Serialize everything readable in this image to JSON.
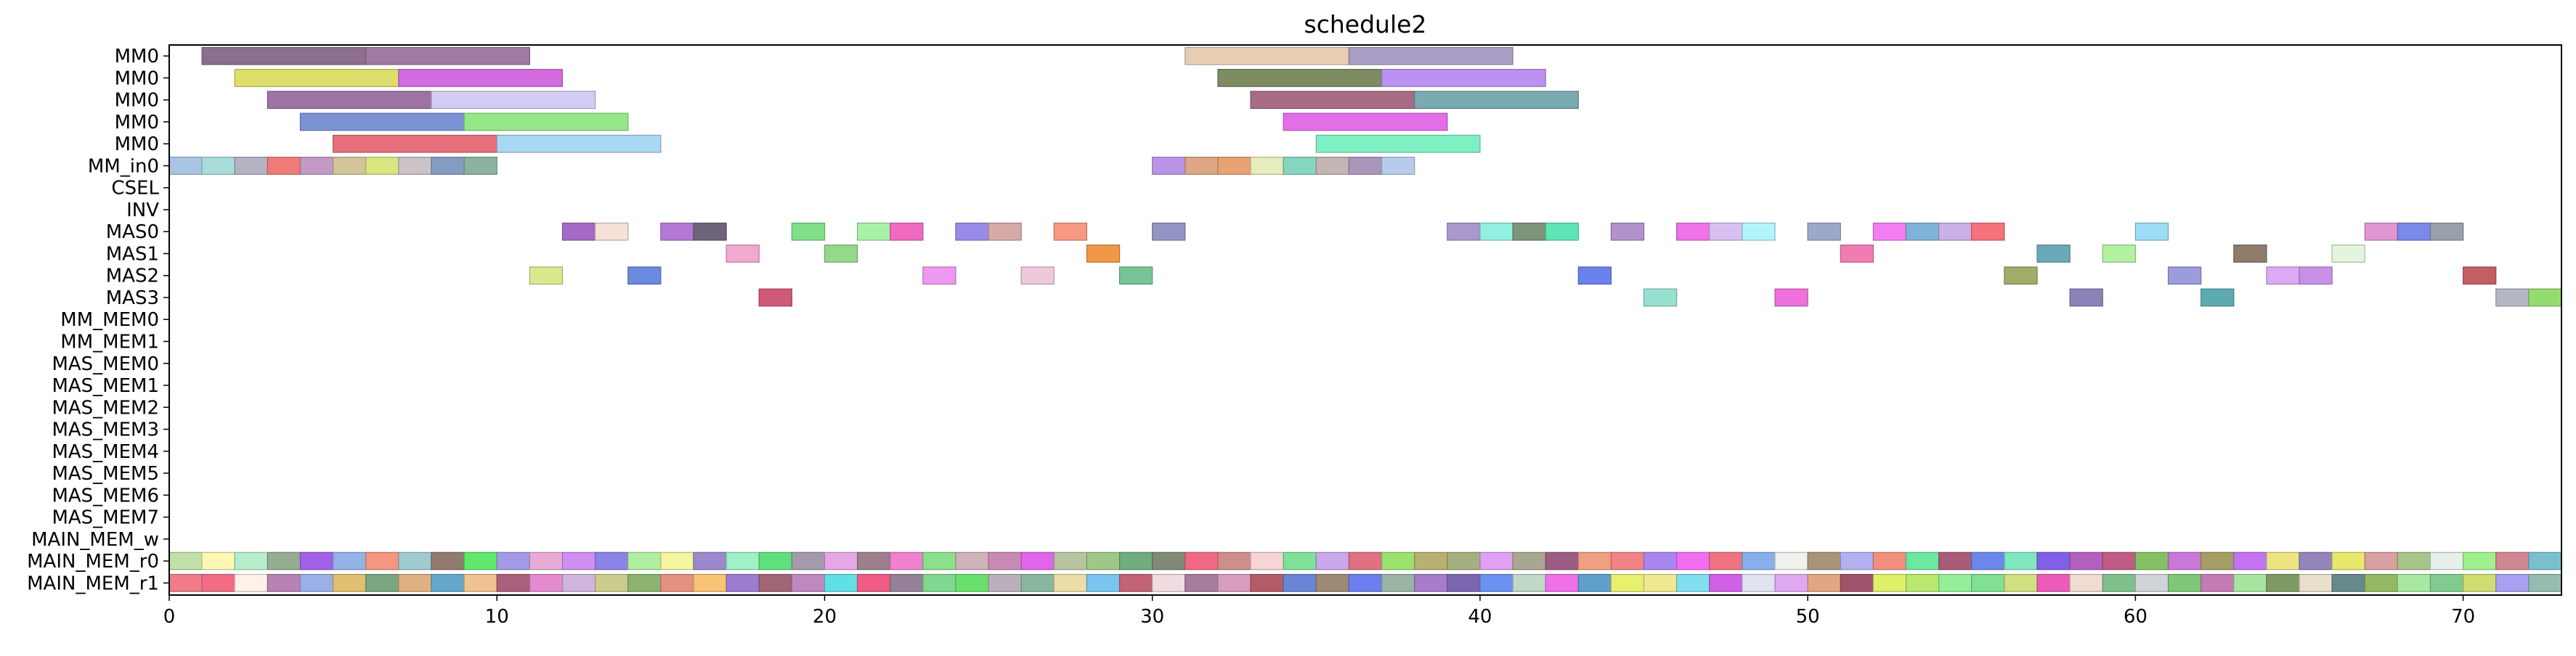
{
  "chart_data": {
    "type": "gantt",
    "title": "schedule2",
    "xlim": [
      0,
      73
    ],
    "xticks": [
      0,
      10,
      20,
      30,
      40,
      50,
      60,
      70
    ],
    "rows": [
      "MM0",
      "MM0",
      "MM0",
      "MM0",
      "MM0",
      "MM_in0",
      "CSEL",
      "INV",
      "MAS0",
      "MAS1",
      "MAS2",
      "MAS3",
      "MM_MEM0",
      "MM_MEM1",
      "MAS_MEM0",
      "MAS_MEM1",
      "MAS_MEM2",
      "MAS_MEM3",
      "MAS_MEM4",
      "MAS_MEM5",
      "MAS_MEM6",
      "MAS_MEM7",
      "MAIN_MEM_w",
      "MAIN_MEM_r0",
      "MAIN_MEM_r1"
    ],
    "tasks": [
      {
        "row": 0,
        "start": 1,
        "end": 6,
        "color": "#8c6e8e"
      },
      {
        "row": 0,
        "start": 6,
        "end": 11,
        "color": "#a07aa3"
      },
      {
        "row": 0,
        "start": 31,
        "end": 36,
        "color": "#e6cdb4"
      },
      {
        "row": 0,
        "start": 36,
        "end": 41,
        "color": "#a99ec4"
      },
      {
        "row": 1,
        "start": 2,
        "end": 7,
        "color": "#dede6a"
      },
      {
        "row": 1,
        "start": 7,
        "end": 12,
        "color": "#d36ce0"
      },
      {
        "row": 1,
        "start": 32,
        "end": 37,
        "color": "#7f8c62"
      },
      {
        "row": 1,
        "start": 37,
        "end": 42,
        "color": "#bb92f2"
      },
      {
        "row": 2,
        "start": 3,
        "end": 8,
        "color": "#9e73a6"
      },
      {
        "row": 2,
        "start": 8,
        "end": 13,
        "color": "#d4ccf4"
      },
      {
        "row": 2,
        "start": 33,
        "end": 38,
        "color": "#a86c84"
      },
      {
        "row": 2,
        "start": 38,
        "end": 43,
        "color": "#7aa9b2"
      },
      {
        "row": 3,
        "start": 4,
        "end": 9,
        "color": "#7b93d4"
      },
      {
        "row": 3,
        "start": 9,
        "end": 14,
        "color": "#94e888"
      },
      {
        "row": 3,
        "start": 34,
        "end": 39,
        "color": "#e36ee8"
      },
      {
        "row": 4,
        "start": 5,
        "end": 10,
        "color": "#e6707c"
      },
      {
        "row": 4,
        "start": 10,
        "end": 15,
        "color": "#a9d9f2"
      },
      {
        "row": 4,
        "start": 35,
        "end": 40,
        "color": "#7ef0c4"
      },
      {
        "row": 5,
        "start": 0,
        "end": 1,
        "color": "#aac4e6"
      },
      {
        "row": 5,
        "start": 1,
        "end": 2,
        "color": "#a9ddd9"
      },
      {
        "row": 5,
        "start": 2,
        "end": 3,
        "color": "#b3b3c4"
      },
      {
        "row": 5,
        "start": 3,
        "end": 4,
        "color": "#f07a78"
      },
      {
        "row": 5,
        "start": 4,
        "end": 5,
        "color": "#c29ac6"
      },
      {
        "row": 5,
        "start": 5,
        "end": 6,
        "color": "#d4c49a"
      },
      {
        "row": 5,
        "start": 6,
        "end": 7,
        "color": "#dbe680"
      },
      {
        "row": 5,
        "start": 7,
        "end": 8,
        "color": "#cbc3c8"
      },
      {
        "row": 5,
        "start": 8,
        "end": 9,
        "color": "#859bc2"
      },
      {
        "row": 5,
        "start": 9,
        "end": 10,
        "color": "#8cb39f"
      },
      {
        "row": 5,
        "start": 30,
        "end": 31,
        "color": "#b994e8"
      },
      {
        "row": 5,
        "start": 31,
        "end": 32,
        "color": "#dea682"
      },
      {
        "row": 5,
        "start": 32,
        "end": 33,
        "color": "#e8a172"
      },
      {
        "row": 5,
        "start": 33,
        "end": 34,
        "color": "#e7ecbc"
      },
      {
        "row": 5,
        "start": 34,
        "end": 35,
        "color": "#85d6c1"
      },
      {
        "row": 5,
        "start": 35,
        "end": 36,
        "color": "#c3b5b3"
      },
      {
        "row": 5,
        "start": 36,
        "end": 37,
        "color": "#aa96b8"
      },
      {
        "row": 5,
        "start": 37,
        "end": 38,
        "color": "#b7ccec"
      },
      {
        "row": 8,
        "start": 12,
        "end": 13,
        "color": "#a46ac6"
      },
      {
        "row": 8,
        "start": 13,
        "end": 14,
        "color": "#f5e1d8"
      },
      {
        "row": 8,
        "start": 15,
        "end": 16,
        "color": "#b478d6"
      },
      {
        "row": 8,
        "start": 16,
        "end": 17,
        "color": "#6e6479"
      },
      {
        "row": 8,
        "start": 19,
        "end": 20,
        "color": "#80e08a"
      },
      {
        "row": 8,
        "start": 21,
        "end": 22,
        "color": "#a7f2a8"
      },
      {
        "row": 8,
        "start": 22,
        "end": 23,
        "color": "#f06ac1"
      },
      {
        "row": 8,
        "start": 24,
        "end": 25,
        "color": "#9a8be8"
      },
      {
        "row": 8,
        "start": 25,
        "end": 26,
        "color": "#d6aaa7"
      },
      {
        "row": 8,
        "start": 27,
        "end": 28,
        "color": "#f79883"
      },
      {
        "row": 8,
        "start": 30,
        "end": 31,
        "color": "#9494c4"
      },
      {
        "row": 8,
        "start": 39,
        "end": 40,
        "color": "#a898cc"
      },
      {
        "row": 8,
        "start": 40,
        "end": 41,
        "color": "#92f0df"
      },
      {
        "row": 8,
        "start": 41,
        "end": 42,
        "color": "#7d9479"
      },
      {
        "row": 8,
        "start": 42,
        "end": 43,
        "color": "#5ee6b6"
      },
      {
        "row": 8,
        "start": 44,
        "end": 45,
        "color": "#b392cc"
      },
      {
        "row": 8,
        "start": 46,
        "end": 47,
        "color": "#ee72e8"
      },
      {
        "row": 8,
        "start": 47,
        "end": 48,
        "color": "#d9c0f2"
      },
      {
        "row": 8,
        "start": 48,
        "end": 49,
        "color": "#b3f6fa"
      },
      {
        "row": 8,
        "start": 50,
        "end": 51,
        "color": "#9ea8cb"
      },
      {
        "row": 8,
        "start": 52,
        "end": 53,
        "color": "#f27ef2"
      },
      {
        "row": 8,
        "start": 53,
        "end": 54,
        "color": "#7eb3d9"
      },
      {
        "row": 8,
        "start": 54,
        "end": 55,
        "color": "#c9b0e6"
      },
      {
        "row": 8,
        "start": 55,
        "end": 56,
        "color": "#f5727a"
      },
      {
        "row": 8,
        "start": 60,
        "end": 61,
        "color": "#9edcf5"
      },
      {
        "row": 8,
        "start": 67,
        "end": 68,
        "color": "#e096d2"
      },
      {
        "row": 8,
        "start": 68,
        "end": 69,
        "color": "#7a8ae6"
      },
      {
        "row": 8,
        "start": 69,
        "end": 70,
        "color": "#97a0ab"
      },
      {
        "row": 9,
        "start": 17,
        "end": 18,
        "color": "#f2a9cf"
      },
      {
        "row": 9,
        "start": 20,
        "end": 21,
        "color": "#94d98a"
      },
      {
        "row": 9,
        "start": 28,
        "end": 29,
        "color": "#f09848"
      },
      {
        "row": 9,
        "start": 51,
        "end": 52,
        "color": "#f07cb4"
      },
      {
        "row": 9,
        "start": 57,
        "end": 58,
        "color": "#6aaab8"
      },
      {
        "row": 9,
        "start": 59,
        "end": 60,
        "color": "#b4f2a2"
      },
      {
        "row": 9,
        "start": 63,
        "end": 64,
        "color": "#8f7c6a"
      },
      {
        "row": 9,
        "start": 66,
        "end": 67,
        "color": "#e4f5de"
      },
      {
        "row": 10,
        "start": 11,
        "end": 12,
        "color": "#dce890"
      },
      {
        "row": 10,
        "start": 14,
        "end": 15,
        "color": "#6a8ae0"
      },
      {
        "row": 10,
        "start": 23,
        "end": 24,
        "color": "#ef98f0"
      },
      {
        "row": 10,
        "start": 26,
        "end": 27,
        "color": "#f0c8dc"
      },
      {
        "row": 10,
        "start": 29,
        "end": 30,
        "color": "#78c496"
      },
      {
        "row": 10,
        "start": 43,
        "end": 44,
        "color": "#6a82ee"
      },
      {
        "row": 10,
        "start": 56,
        "end": 57,
        "color": "#a0ac6a"
      },
      {
        "row": 10,
        "start": 61,
        "end": 62,
        "color": "#9c9cdc"
      },
      {
        "row": 10,
        "start": 64,
        "end": 65,
        "color": "#dcaaf2"
      },
      {
        "row": 10,
        "start": 65,
        "end": 66,
        "color": "#c890e6"
      },
      {
        "row": 10,
        "start": 70,
        "end": 71,
        "color": "#c45e62"
      },
      {
        "row": 11,
        "start": 18,
        "end": 19,
        "color": "#d05878"
      },
      {
        "row": 11,
        "start": 45,
        "end": 46,
        "color": "#98e0d0"
      },
      {
        "row": 11,
        "start": 49,
        "end": 50,
        "color": "#f070dc"
      },
      {
        "row": 11,
        "start": 58,
        "end": 59,
        "color": "#8c82b8"
      },
      {
        "row": 11,
        "start": 62,
        "end": 63,
        "color": "#5eaab2"
      },
      {
        "row": 11,
        "start": 71,
        "end": 72,
        "color": "#b4b8c4"
      },
      {
        "row": 11,
        "start": 72,
        "end": 73,
        "color": "#94dc6e"
      }
    ],
    "palette_r0": [
      "#c0e0a8",
      "#fff6b4",
      "#b6eecb",
      "#94ad93",
      "#a360e8",
      "#94b2e6",
      "#f49680",
      "#9ecad0",
      "#937a6e",
      "#5fe86a",
      "#a39ae8",
      "#e6acd6",
      "#cf8ef2",
      "#8b84e6",
      "#b1efa0",
      "#f4f6a0",
      "#9b8acb",
      "#9ff2c8",
      "#60e07c",
      "#a39aac",
      "#e3a8e4",
      "#9c7e8c",
      "#f081cf",
      "#8ce08c",
      "#cfb3b8",
      "#c68ab4",
      "#e065ec",
      "#b8c4a0",
      "#9dc888",
      "#70ac80",
      "#808a76",
      "#f06a84",
      "#d08e8a",
      "#f8d4d4",
      "#80e098",
      "#c9a8ec",
      "#e07082",
      "#9ce070",
      "#b8b070",
      "#a4b080",
      "#e0a0f4",
      "#a8a890",
      "#9c5c84",
      "#f0a080",
      "#f08484",
      "#a886f0",
      "#f26ef2",
      "#f07480",
      "#86b0ec",
      "#f0f0ec",
      "#a89478",
      "#b2b2f2",
      "#f0907c",
      "#6ae8a0",
      "#a85c78",
      "#6a88ec",
      "#80e6c0",
      "#8060e8",
      "#b460c0",
      "#c05c84",
      "#86c064",
      "#c878d8",
      "#a49e64",
      "#c474f2",
      "#ece480",
      "#9484bc",
      "#e8e86c",
      "#d8a0a0",
      "#a8c488",
      "#e6f0e8",
      "#a0f08e",
      "#d08690",
      "#7ac0d0"
    ],
    "palette_r1": [
      "#f07c88",
      "#f26c84",
      "#fff0e8",
      "#b883b4",
      "#9ab0e6",
      "#e0c070",
      "#7aa680",
      "#e0b080",
      "#64a6cc",
      "#f0c490",
      "#a8607c",
      "#e68ad0",
      "#d0b4dc",
      "#cccc8c",
      "#8cb470",
      "#e69080",
      "#f8c474",
      "#9a7cd0",
      "#a06674",
      "#c088c0",
      "#60e0e4",
      "#f05c84",
      "#948098",
      "#80d890",
      "#6ae06c",
      "#b9b0bc",
      "#8ab6a0",
      "#ecdca8",
      "#7ac4f0",
      "#c26474",
      "#f0dce0",
      "#a87c9c",
      "#d89cc0",
      "#b45c66",
      "#6a86d8",
      "#9e8a74",
      "#6c7ef0",
      "#9cb4a4",
      "#a87ccc",
      "#7d66b0",
      "#6a92f0",
      "#c0d8c8",
      "#f070e8",
      "#60a0cc",
      "#e8f070",
      "#f0e890",
      "#80e0f0",
      "#d060e8",
      "#e0e4f0",
      "#e0a8f0",
      "#e0a880",
      "#a2526c",
      "#e0f068",
      "#b8e870",
      "#94f098",
      "#80e094",
      "#d0e080",
      "#ec5cb8",
      "#f0dcd0",
      "#80c08c",
      "#d0d4d8",
      "#7ec878",
      "#c47cb4",
      "#a8e4a0",
      "#7e9a64",
      "#e8e0cc",
      "#648a8c",
      "#94b864",
      "#a8e8a0",
      "#80cc90",
      "#d0dc70",
      "#a8a0f0",
      "#94bcb0"
    ]
  }
}
